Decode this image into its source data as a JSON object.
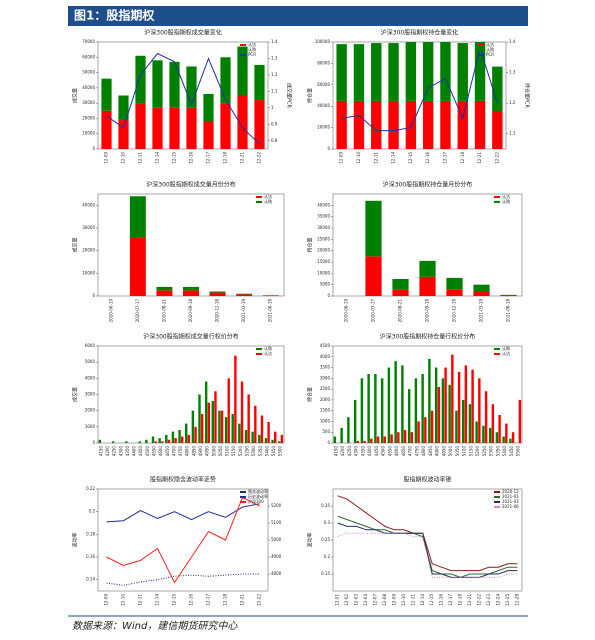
{
  "header": "图1：股指期权",
  "footer": "数据来源：Wind，建信期货研究中心",
  "chart_data": [
    {
      "type": "bar",
      "stacked": true,
      "title": "沪深300股指期权成交量变化",
      "ylabel": "成交量",
      "y2label": "成交量PCR",
      "categories": [
        "12-09",
        "12-10",
        "12-11",
        "12-14",
        "12-15",
        "12-16",
        "12-17",
        "12-18",
        "12-21",
        "12-22"
      ],
      "ylim": [
        0,
        70000
      ],
      "yticks": [
        0,
        10000,
        20000,
        30000,
        40000,
        50000,
        60000,
        70000
      ],
      "y2lim": [
        0.75,
        1.4
      ],
      "y2ticks": [
        0.8,
        0.9,
        1.0,
        1.1,
        1.2,
        1.3,
        1.4
      ],
      "series": [
        {
          "name": "认沽",
          "color": "#ff0000",
          "values": [
            25000,
            19000,
            30000,
            27000,
            27000,
            27000,
            18000,
            30000,
            35000,
            32000
          ]
        },
        {
          "name": "认购",
          "color": "#008000",
          "values": [
            21000,
            16000,
            31000,
            31000,
            30000,
            27000,
            18000,
            30000,
            32000,
            23000
          ]
        },
        {
          "name": "PCR",
          "color": "#1f2fa8",
          "axis": "y2",
          "values": [
            0.95,
            0.88,
            1.2,
            1.33,
            1.28,
            1.02,
            1.3,
            1.05,
            0.88,
            0.78
          ]
        }
      ]
    },
    {
      "type": "bar",
      "stacked": true,
      "title": "沪深300股指期权持仓量变化",
      "ylabel": "持仓量",
      "y2label": "持仓量PCR",
      "categories": [
        "12-09",
        "12-10",
        "12-11",
        "12-14",
        "12-15",
        "12-16",
        "12-17",
        "12-18",
        "12-21",
        "12-22"
      ],
      "ylim": [
        0,
        100000
      ],
      "yticks": [
        0,
        20000,
        40000,
        60000,
        80000,
        100000
      ],
      "y2lim": [
        1.05,
        1.4
      ],
      "y2ticks": [
        1.1,
        1.2,
        1.3,
        1.4
      ],
      "series": [
        {
          "name": "认沽",
          "color": "#ff0000",
          "values": [
            45000,
            45000,
            45000,
            45000,
            45000,
            45000,
            45000,
            45000,
            45000,
            35000
          ]
        },
        {
          "name": "认购",
          "color": "#008000",
          "values": [
            53000,
            53000,
            54000,
            54000,
            55000,
            55000,
            55000,
            54000,
            55000,
            42000
          ]
        },
        {
          "name": "PCR",
          "color": "#1f2fa8",
          "axis": "y2",
          "values": [
            1.15,
            1.16,
            1.11,
            1.11,
            1.12,
            1.25,
            1.28,
            1.15,
            1.38,
            1.2
          ]
        }
      ]
    },
    {
      "type": "bar",
      "stacked": true,
      "title": "沪深300股指期权成交量月份分布",
      "ylabel": "成交量",
      "categories": [
        "2020-06-19",
        "2020-07-17",
        "2020-08-21",
        "2020-09-18",
        "2020-12-18",
        "2021-03-19",
        "2021-06-18"
      ],
      "ylim": [
        0,
        45000
      ],
      "yticks": [
        0,
        10000,
        20000,
        30000,
        40000
      ],
      "series": [
        {
          "name": "认沽",
          "color": "#ff0000",
          "values": [
            0,
            26000,
            2500,
            2500,
            1500,
            700,
            300
          ]
        },
        {
          "name": "认购",
          "color": "#008000",
          "values": [
            0,
            18000,
            1500,
            1500,
            500,
            300,
            0
          ]
        }
      ]
    },
    {
      "type": "bar",
      "stacked": true,
      "title": "沪深300股指期权持仓量月份分布",
      "ylabel": "持仓量",
      "categories": [
        "2020-06-19",
        "2020-07-17",
        "2020-08-21",
        "2020-09-18",
        "2020-12-18",
        "2021-03-19",
        "2021-06-18"
      ],
      "ylim": [
        0,
        45000
      ],
      "yticks": [
        0,
        5000,
        10000,
        15000,
        20000,
        25000,
        30000,
        35000,
        40000
      ],
      "series": [
        {
          "name": "认沽",
          "color": "#ff0000",
          "values": [
            0,
            17500,
            2800,
            8500,
            3000,
            2000,
            200
          ]
        },
        {
          "name": "认购",
          "color": "#008000",
          "values": [
            0,
            24500,
            4700,
            7000,
            5000,
            3000,
            300
          ]
        }
      ]
    },
    {
      "type": "bar",
      "stacked": false,
      "title": "沪深300股指期权成交量行权价分布",
      "ylabel": "成交量",
      "categories": [
        "4150",
        "4200",
        "4250",
        "4300",
        "4350",
        "4400",
        "4450",
        "4500",
        "4550",
        "4600",
        "4650",
        "4700",
        "4750",
        "4800",
        "4850",
        "4900",
        "4950",
        "5000",
        "5050",
        "5100",
        "5150",
        "5200",
        "5250",
        "5300",
        "5350",
        "5400",
        "5450",
        "5500"
      ],
      "ylim": [
        0,
        6000
      ],
      "yticks": [
        0,
        1000,
        2000,
        3000,
        4000,
        5000,
        6000
      ],
      "series": [
        {
          "name": "认购",
          "color": "#008000",
          "values": [
            200,
            0,
            100,
            0,
            100,
            0,
            100,
            200,
            400,
            300,
            500,
            700,
            800,
            1200,
            2000,
            3000,
            3800,
            2600,
            2000,
            1600,
            1800,
            1200,
            800,
            700,
            500,
            300,
            200,
            100
          ]
        },
        {
          "name": "认沽",
          "color": "#ff0000",
          "values": [
            0,
            0,
            0,
            0,
            0,
            0,
            0,
            0,
            100,
            100,
            200,
            300,
            400,
            500,
            1000,
            1800,
            2500,
            3200,
            2000,
            4000,
            5400,
            3800,
            3000,
            2300,
            1700,
            1300,
            700,
            500
          ]
        }
      ]
    },
    {
      "type": "bar",
      "stacked": false,
      "title": "沪深300股指期权持仓量行权价分布",
      "ylabel": "持仓量",
      "categories": [
        "4150",
        "4200",
        "4250",
        "4300",
        "4350",
        "4400",
        "4450",
        "4500",
        "4550",
        "4600",
        "4650",
        "4700",
        "4750",
        "4800",
        "4850",
        "4900",
        "4950",
        "5000",
        "5050",
        "5100",
        "5150",
        "5200",
        "5250",
        "5300",
        "5350",
        "5400",
        "5450",
        "5500"
      ],
      "ylim": [
        0,
        4500
      ],
      "yticks": [
        0,
        500,
        1000,
        1500,
        2000,
        2500,
        3000,
        3500,
        4000,
        4500
      ],
      "series": [
        {
          "name": "认购",
          "color": "#008000",
          "values": [
            300,
            700,
            1200,
            2000,
            3000,
            3200,
            3200,
            3000,
            3500,
            3800,
            3600,
            2500,
            3000,
            3200,
            3900,
            3500,
            3000,
            2700,
            1500,
            2000,
            1800,
            1000,
            800,
            700,
            500,
            300,
            200,
            0
          ]
        },
        {
          "name": "认沽",
          "color": "#ff0000",
          "values": [
            0,
            0,
            0,
            100,
            100,
            200,
            300,
            300,
            400,
            500,
            600,
            500,
            1000,
            1200,
            1500,
            2600,
            3500,
            4100,
            3300,
            3600,
            3400,
            3000,
            2400,
            1800,
            1300,
            900,
            500,
            2000
          ]
        }
      ]
    },
    {
      "type": "line",
      "title": "股指期权隐含波动率走势",
      "ylabel": "波动率",
      "categories": [
        "12-09",
        "12-10",
        "12-11",
        "12-14",
        "12-15",
        "12-16",
        "12-17",
        "12-18",
        "12-21",
        "12-22"
      ],
      "ylim": [
        0.13,
        0.22
      ],
      "yticks": [
        0.14,
        0.16,
        0.18,
        0.2,
        0.22
      ],
      "y2lim": [
        4700,
        5300
      ],
      "y2ticks": [
        4800,
        4900,
        5000,
        5100,
        5200
      ],
      "series": [
        {
          "name": "隐含波动率",
          "color": "#1f2f8f",
          "style": "solid",
          "values": [
            0.191,
            0.192,
            0.201,
            0.194,
            0.2,
            0.193,
            0.2,
            0.195,
            0.204,
            0.207
          ]
        },
        {
          "name": "历史波动率",
          "color": "#1f2f8f",
          "style": "dotted",
          "values": [
            0.137,
            0.135,
            0.138,
            0.14,
            0.143,
            0.144,
            0.143,
            0.144,
            0.145,
            0.145
          ]
        },
        {
          "name": "沪深300",
          "color": "#ff2020",
          "style": "solid",
          "axis": "y2",
          "values": [
            4900,
            4850,
            4880,
            4950,
            4750,
            4900,
            5050,
            5000,
            5250,
            5200
          ]
        }
      ]
    },
    {
      "type": "line",
      "title": "股指期权波动率锥",
      "ylabel": "波动率",
      "categories": [
        "12-01",
        "12-02",
        "12-03",
        "12-04",
        "12-07",
        "12-08",
        "12-09",
        "12-10",
        "12-11",
        "12-14",
        "12-15",
        "12-16",
        "12-17",
        "12-18",
        "12-21",
        "12-22",
        "12-23",
        "12-24",
        "12-25",
        "12-28"
      ],
      "ylim": [
        0.1,
        0.4
      ],
      "yticks": [
        0.15,
        0.2,
        0.25,
        0.3,
        0.35
      ],
      "series": [
        {
          "name": "2020-12",
          "color": "#8b1a1a",
          "style": "solid",
          "values": [
            0.38,
            0.37,
            0.35,
            0.33,
            0.31,
            0.29,
            0.28,
            0.28,
            0.27,
            0.27,
            0.18,
            0.17,
            0.16,
            0.16,
            0.16,
            0.16,
            0.17,
            0.17,
            0.18,
            0.18
          ]
        },
        {
          "name": "2021-01",
          "color": "#2e6b2e",
          "style": "solid",
          "values": [
            0.32,
            0.31,
            0.3,
            0.29,
            0.28,
            0.28,
            0.27,
            0.27,
            0.27,
            0.26,
            0.16,
            0.15,
            0.15,
            0.14,
            0.15,
            0.15,
            0.15,
            0.16,
            0.17,
            0.17
          ]
        },
        {
          "name": "2021-03",
          "color": "#1f2f5f",
          "style": "solid",
          "values": [
            0.3,
            0.29,
            0.29,
            0.28,
            0.28,
            0.27,
            0.27,
            0.27,
            0.27,
            0.27,
            0.15,
            0.15,
            0.14,
            0.14,
            0.14,
            0.14,
            0.15,
            0.15,
            0.16,
            0.16
          ]
        },
        {
          "name": "2021-06",
          "color": "#d88aa8",
          "style": "dotted",
          "values": [
            0.26,
            0.27,
            0.27,
            0.27,
            0.27,
            0.27,
            0.27,
            0.27,
            0.26,
            0.26,
            0.14,
            0.14,
            0.14,
            0.14,
            0.14,
            0.14,
            0.14,
            0.14,
            0.15,
            0.15
          ]
        }
      ]
    }
  ]
}
